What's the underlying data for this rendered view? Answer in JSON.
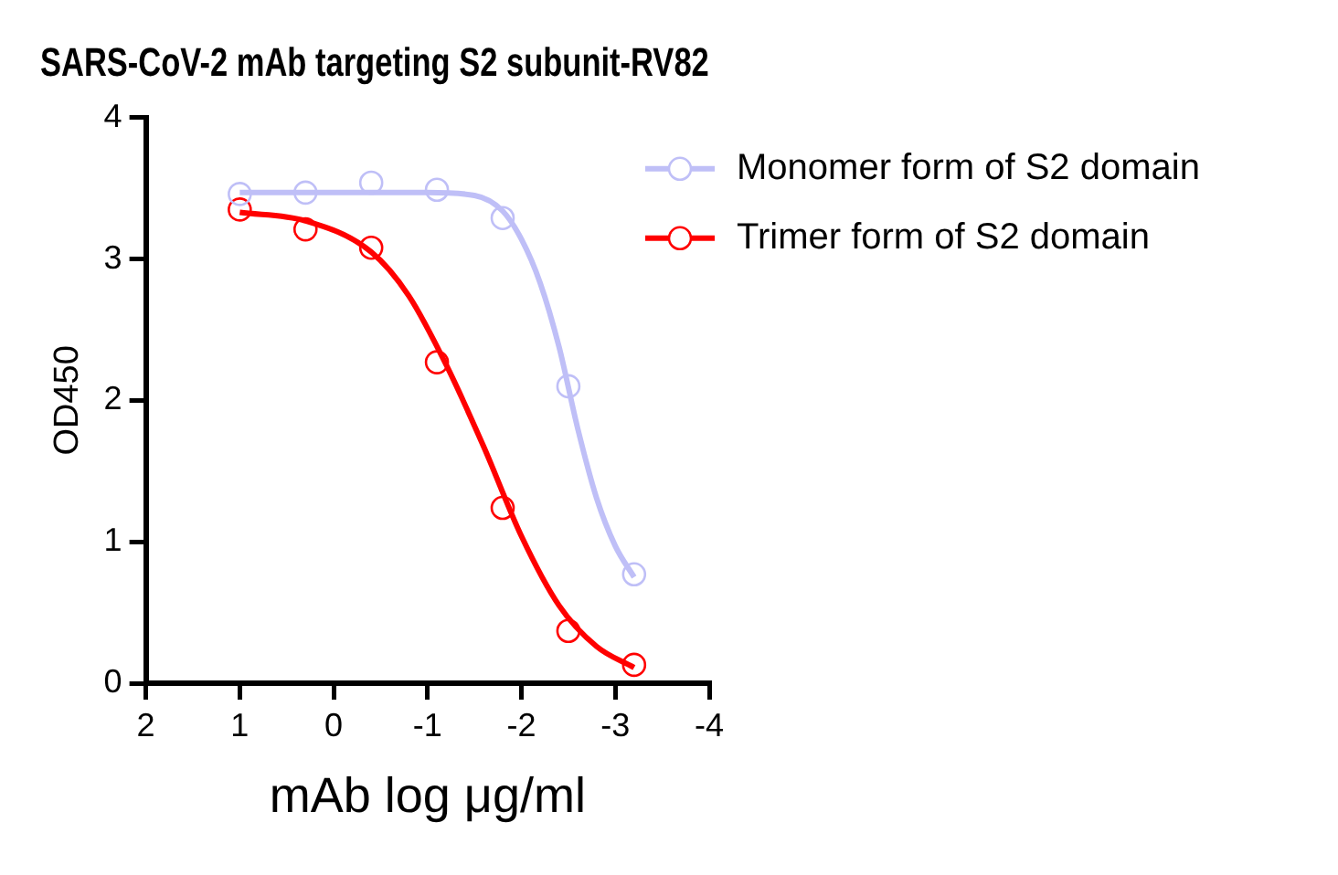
{
  "chart_data": {
    "type": "scatter",
    "title": "SARS-CoV-2 mAb targeting S2 subunit-RV82",
    "xlabel": "mAb log μg/ml",
    "ylabel": "OD450",
    "xlim": [
      2,
      -4
    ],
    "xticks": [
      2,
      1,
      0,
      -1,
      -2,
      -3,
      -4
    ],
    "ylim": [
      0,
      4
    ],
    "yticks": [
      0,
      1,
      2,
      3,
      4
    ],
    "grid": false,
    "legend": "top right",
    "marker": "circle",
    "series": [
      {
        "name": "Monomer form of S2 domain",
        "color": "#bfbff7",
        "x": [
          1,
          0.3,
          -0.4,
          -1.1,
          -1.8,
          -2.5,
          -3.2
        ],
        "values": [
          3.46,
          3.47,
          3.54,
          3.49,
          3.29,
          2.1,
          0.77
        ]
      },
      {
        "name": "Trimer form of S2 domain",
        "color": "#ff0000",
        "x": [
          1,
          0.3,
          -0.4,
          -1.1,
          -1.8,
          -2.5,
          -3.2
        ],
        "values": [
          3.35,
          3.21,
          3.08,
          2.27,
          1.24,
          0.37,
          0.13
        ]
      },
      {
        "type": "line",
        "color": "#bfbff7",
        "marker": "none",
        "x": [
          1,
          -1,
          -1.5,
          -1.8,
          -2,
          -2.2,
          -2.4,
          -2.6,
          -2.8,
          -3,
          -3.2
        ],
        "values": [
          3.47,
          3.47,
          3.45,
          3.34,
          3.14,
          2.83,
          2.38,
          1.8,
          1.31,
          0.97,
          0.75
        ]
      },
      {
        "type": "line",
        "color": "#ff0000",
        "marker": "none",
        "x": [
          1,
          0.3,
          -0.4,
          -0.8,
          -1.2,
          -1.6,
          -2,
          -2.4,
          -2.8,
          -3.2
        ],
        "values": [
          3.33,
          3.27,
          3.05,
          2.74,
          2.25,
          1.67,
          1.04,
          0.55,
          0.26,
          0.11
        ]
      }
    ]
  }
}
